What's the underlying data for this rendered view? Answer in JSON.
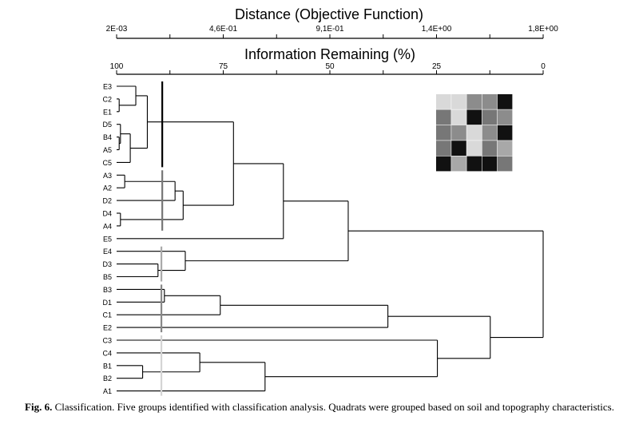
{
  "top_axis": {
    "title": "Distance (Objective Function)",
    "ticks": [
      "2E-03",
      "4,6E-01",
      "9,1E-01",
      "1,4E+00",
      "1,8E+00"
    ]
  },
  "second_axis": {
    "title": "Information Remaining (%)",
    "ticks": [
      "100",
      "75",
      "50",
      "25",
      "0"
    ],
    "range": [
      100,
      0
    ]
  },
  "leaves": [
    "E3",
    "C2",
    "E1",
    "D5",
    "B4",
    "A5",
    "C5",
    "A3",
    "A2",
    "D2",
    "D4",
    "A4",
    "E5",
    "E4",
    "D3",
    "B5",
    "B3",
    "D1",
    "C1",
    "E2",
    "C3",
    "C4",
    "B1",
    "B2",
    "A1"
  ],
  "merges": [
    {
      "a": "E1",
      "b": "C2",
      "at": 99.4
    },
    {
      "a": "B4",
      "b": "A5",
      "at": 99.4
    },
    {
      "a": "#1",
      "b": "D5",
      "at": 99.1
    },
    {
      "a": "#0",
      "b": "E3",
      "at": 95.5
    },
    {
      "a": "#2",
      "b": "C5",
      "at": 96.8
    },
    {
      "a": "#3",
      "b": "#4",
      "at": 92.8
    },
    {
      "a": "A3",
      "b": "A2",
      "at": 98.1
    },
    {
      "a": "D4",
      "b": "A4",
      "at": 99.1
    },
    {
      "a": "#6",
      "b": "D2",
      "at": 86.3
    },
    {
      "a": "#8",
      "b": "#7",
      "at": 84.4
    },
    {
      "a": "#5",
      "b": "#9",
      "at": 72.6
    },
    {
      "a": "#10",
      "b": "E5",
      "at": 60.9
    },
    {
      "a": "D3",
      "b": "B5",
      "at": 90.3
    },
    {
      "a": "E4",
      "b": "#12",
      "at": 83.9
    },
    {
      "a": "#11",
      "b": "#13",
      "at": 45.7
    },
    {
      "a": "B3",
      "b": "D1",
      "at": 88.8
    },
    {
      "a": "#15",
      "b": "C1",
      "at": 75.7
    },
    {
      "a": "#16",
      "b": "E2",
      "at": 36.4
    },
    {
      "a": "B1",
      "b": "B2",
      "at": 93.9
    },
    {
      "a": "C4",
      "b": "#18",
      "at": 80.5
    },
    {
      "a": "#19",
      "b": "A1",
      "at": 65.2
    },
    {
      "a": "C3",
      "b": "#20",
      "at": 24.8
    },
    {
      "a": "#17",
      "b": "#21",
      "at": 12.4
    },
    {
      "a": "#14",
      "b": "#22",
      "at": 0
    }
  ],
  "group_markers": [
    {
      "at": 89.3,
      "from": "E3",
      "to": "C5",
      "color": "#000000"
    },
    {
      "at": 89.3,
      "from": "A3",
      "to": "A4",
      "color": "#777777"
    },
    {
      "at": 89.5,
      "from": "E4",
      "to": "B5",
      "color": "#aaaaaa"
    },
    {
      "at": 89.5,
      "from": "B3",
      "to": "E2",
      "color": "#888888"
    },
    {
      "at": 89.5,
      "from": "C3",
      "to": "A1",
      "color": "#d4d4d4"
    }
  ],
  "legend_grid": [
    [
      "#d9d9d9",
      "#d9d9d9",
      "#8c8c8c",
      "#8c8c8c",
      "#111111"
    ],
    [
      "#777777",
      "#d9d9d9",
      "#111111",
      "#777777",
      "#8c8c8c"
    ],
    [
      "#777777",
      "#8c8c8c",
      "#d9d9d9",
      "#8c8c8c",
      "#111111"
    ],
    [
      "#777777",
      "#111111",
      "#d9d9d9",
      "#777777",
      "#a8a8a8"
    ],
    [
      "#111111",
      "#a8a8a8",
      "#111111",
      "#111111",
      "#777777"
    ]
  ],
  "caption": {
    "lead": "Fig. 6.",
    "text": " Classification. Five groups identified with classification analysis. Quadrats were grouped based on soil and topography characteristics."
  }
}
